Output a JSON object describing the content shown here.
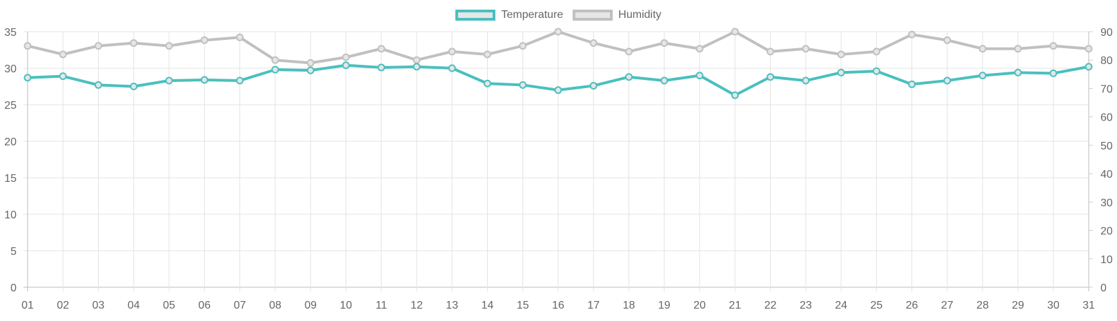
{
  "chart_data": {
    "type": "line",
    "categories": [
      "01",
      "02",
      "03",
      "04",
      "05",
      "06",
      "07",
      "08",
      "09",
      "10",
      "11",
      "12",
      "13",
      "14",
      "15",
      "16",
      "17",
      "18",
      "19",
      "20",
      "21",
      "22",
      "23",
      "24",
      "25",
      "26",
      "27",
      "28",
      "29",
      "30",
      "31"
    ],
    "series": [
      {
        "name": "Temperature",
        "axis": "left",
        "color": "#4bbfbf",
        "values": [
          28.7,
          28.9,
          27.7,
          27.5,
          28.3,
          28.4,
          28.3,
          29.8,
          29.7,
          30.4,
          30.1,
          30.2,
          30.0,
          27.9,
          27.7,
          27.0,
          27.6,
          28.8,
          28.3,
          29.0,
          26.3,
          28.8,
          28.3,
          29.4,
          29.6,
          27.8,
          28.3,
          29.0,
          29.4,
          29.3,
          30.2
        ]
      },
      {
        "name": "Humidity",
        "axis": "right",
        "color": "#c0c0c0",
        "values": [
          85,
          82,
          85,
          86,
          85,
          87,
          88,
          80,
          79,
          81,
          84,
          80,
          83,
          82,
          85,
          90,
          86,
          83,
          86,
          84,
          90,
          83,
          84,
          82,
          83,
          89,
          87,
          84,
          84,
          85,
          84
        ]
      }
    ],
    "y_left": {
      "min": 0,
      "max": 35,
      "ticks": [
        "0",
        "5",
        "10",
        "15",
        "20",
        "25",
        "30",
        "35"
      ]
    },
    "y_right": {
      "min": 0,
      "max": 90,
      "ticks": [
        "0",
        "10",
        "20",
        "30",
        "40",
        "50",
        "60",
        "70",
        "80",
        "90"
      ]
    },
    "grid": true,
    "legend_position": "top-center",
    "title": "",
    "xlabel": "",
    "ylabel": ""
  }
}
